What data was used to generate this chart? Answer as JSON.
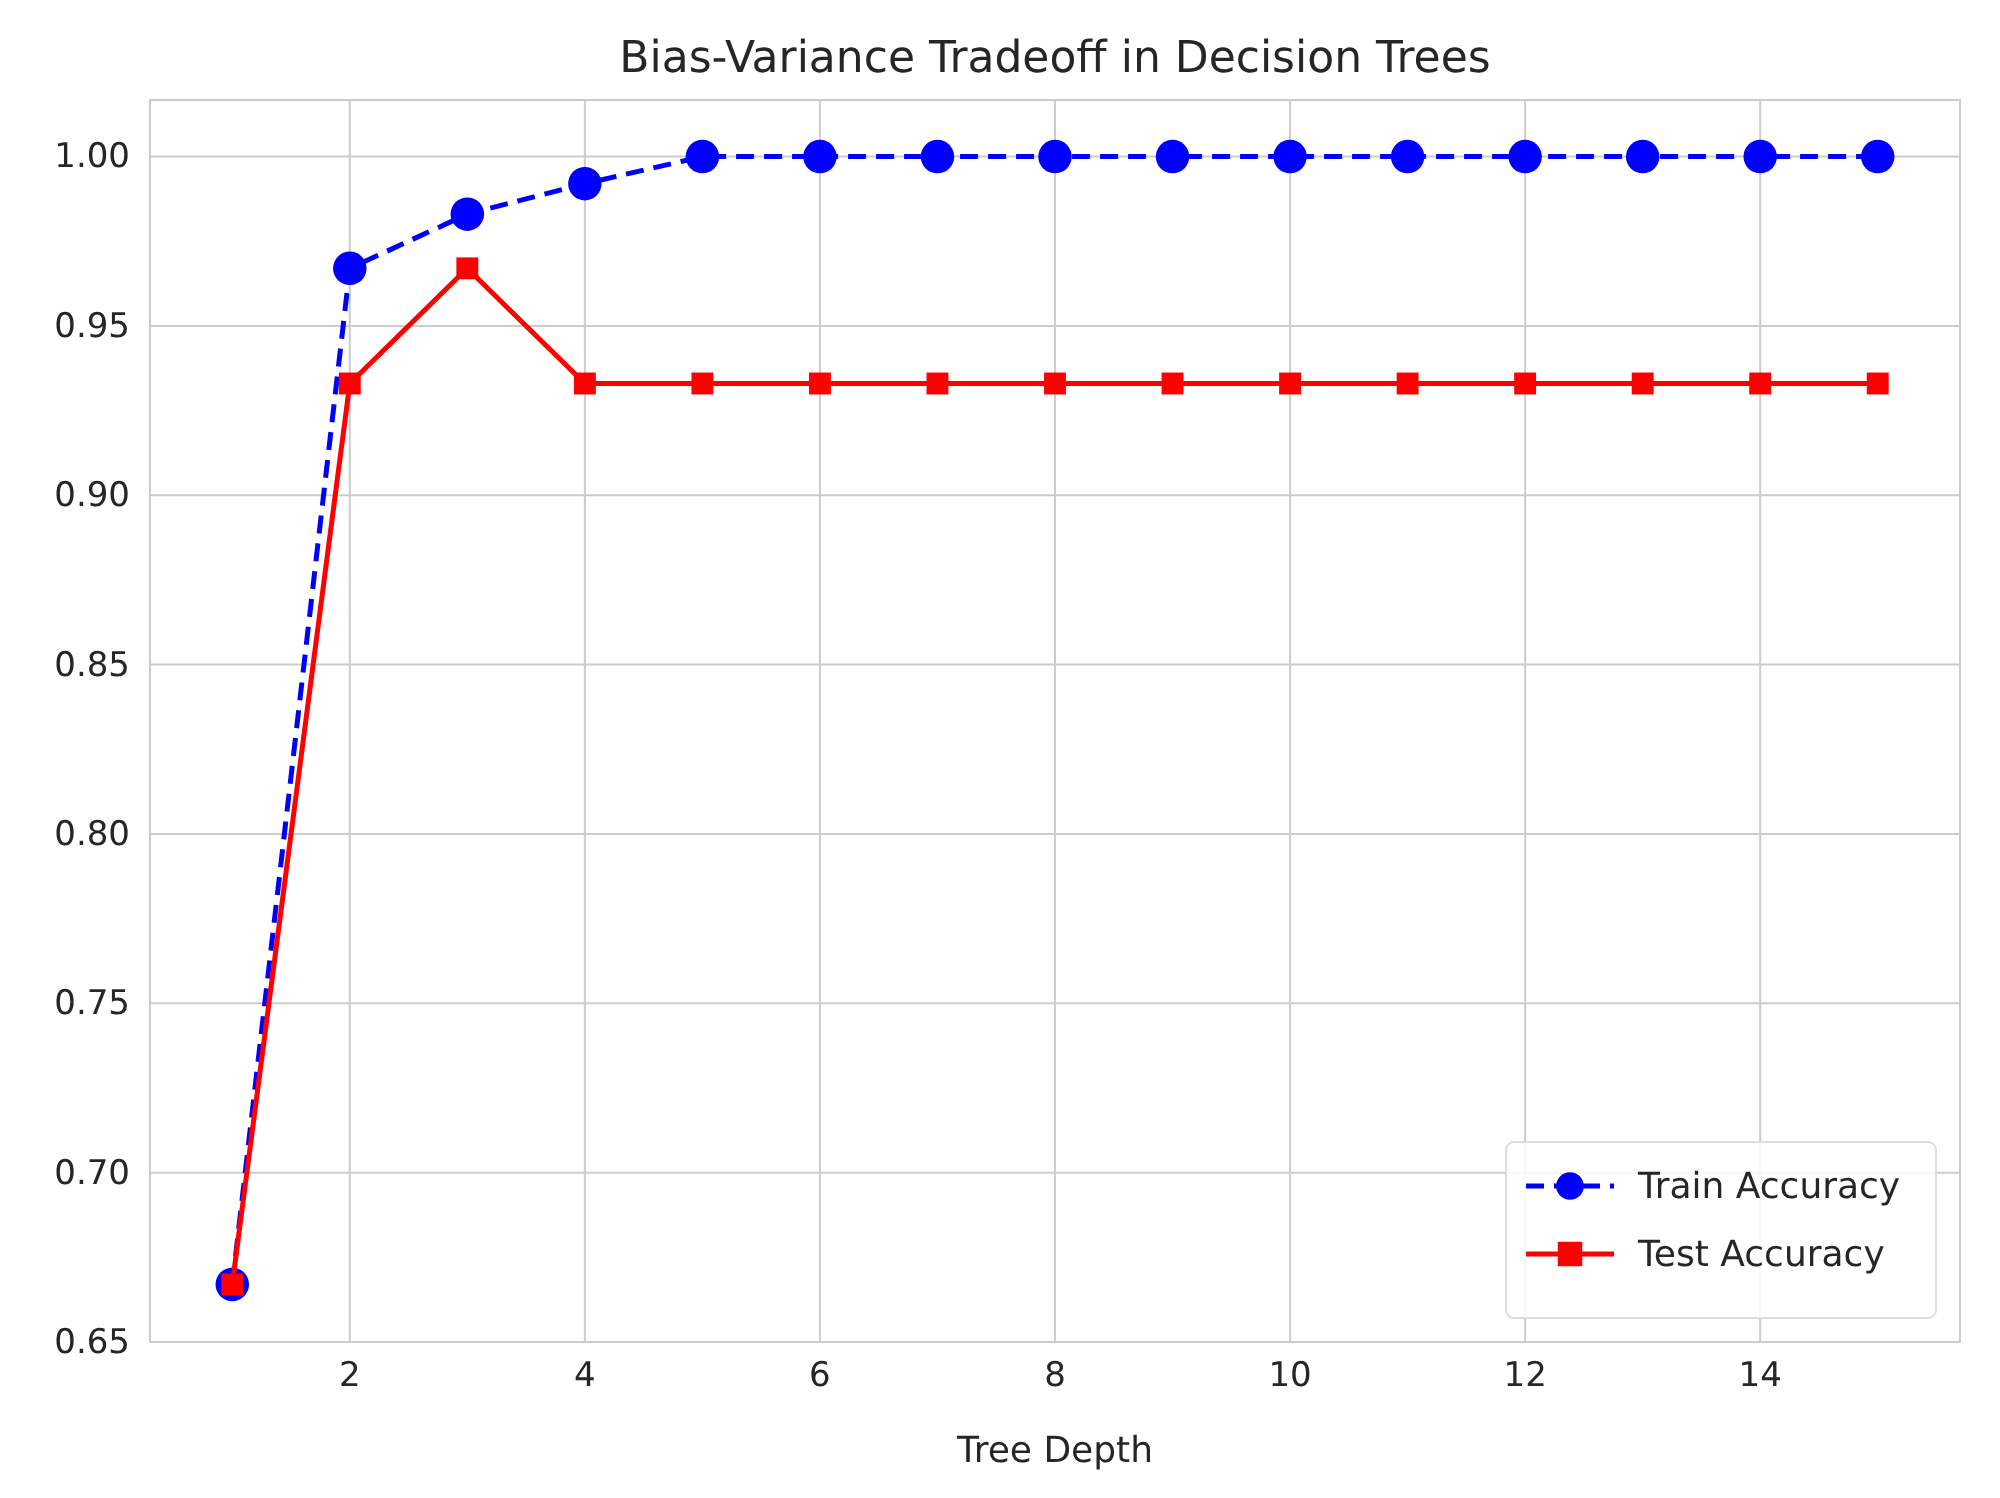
{
  "chart_data": {
    "type": "line",
    "title": "Bias-Variance Tradeoff in Decision Trees",
    "xlabel": "Tree Depth",
    "x": [
      1,
      2,
      3,
      4,
      5,
      6,
      7,
      8,
      9,
      10,
      11,
      12,
      13,
      14,
      15
    ],
    "series": [
      {
        "name": "Train Accuracy",
        "color": "#0000ff",
        "line_style": "dashed",
        "marker": "circle",
        "values": [
          0.667,
          0.967,
          0.983,
          0.992,
          1.0,
          1.0,
          1.0,
          1.0,
          1.0,
          1.0,
          1.0,
          1.0,
          1.0,
          1.0,
          1.0
        ]
      },
      {
        "name": "Test Accuracy",
        "color": "#ff0000",
        "line_style": "solid",
        "marker": "square",
        "values": [
          0.667,
          0.933,
          0.967,
          0.933,
          0.933,
          0.933,
          0.933,
          0.933,
          0.933,
          0.933,
          0.933,
          0.933,
          0.933,
          0.933,
          0.933
        ]
      }
    ],
    "xlim": [
      0.3,
      15.7
    ],
    "xticks": [
      2,
      4,
      6,
      8,
      10,
      12,
      14
    ],
    "ylim": [
      0.65,
      1.0167
    ],
    "yticks": [
      {
        "value": 0.65,
        "label": "0.65"
      },
      {
        "value": 0.7,
        "label": "0.70"
      },
      {
        "value": 0.75,
        "label": "0.75"
      },
      {
        "value": 0.8,
        "label": "0.80"
      },
      {
        "value": 0.85,
        "label": "0.85"
      },
      {
        "value": 0.9,
        "label": "0.90"
      },
      {
        "value": 0.95,
        "label": "0.95"
      },
      {
        "value": 1.0,
        "label": "1.00"
      }
    ],
    "grid": true,
    "legend": "bottom right"
  }
}
